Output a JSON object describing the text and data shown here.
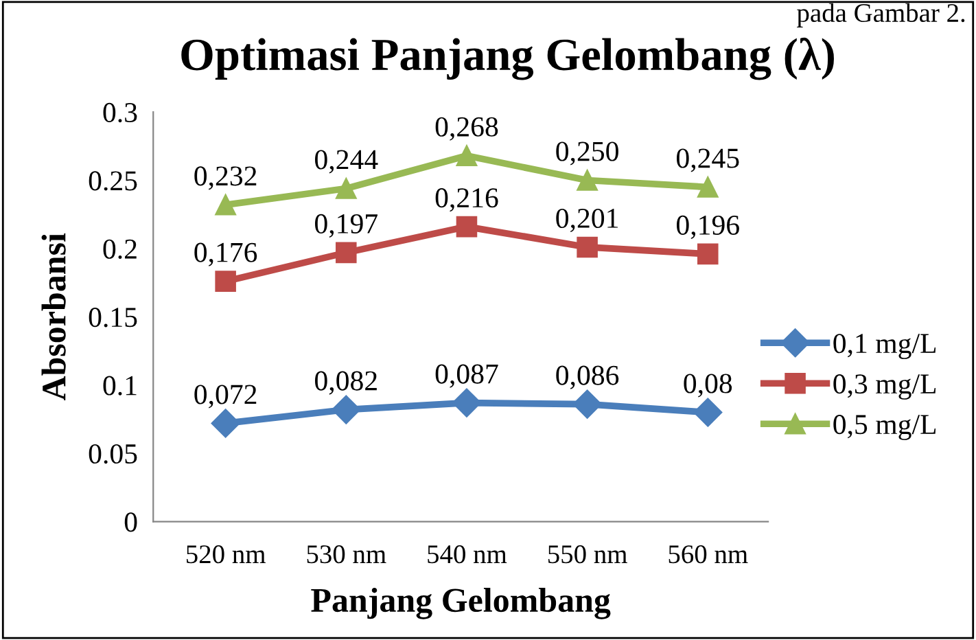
{
  "chart_data": {
    "type": "line",
    "title": "Optimasi Panjang Gelombang (λ)",
    "xlabel": "Panjang Gelombang",
    "ylabel": "Absorbansi",
    "annotations": [
      "pada Gambar 2."
    ],
    "categories": [
      "520 nm",
      "530 nm",
      "540 nm",
      "550 nm",
      "560 nm"
    ],
    "series": [
      {
        "name": "0,1 mg/L",
        "color": "#4a7ebb",
        "marker": "diamond",
        "values": [
          0.072,
          0.082,
          0.087,
          0.086,
          0.08
        ],
        "value_labels": [
          "0,072",
          "0,082",
          "0,087",
          "0,086",
          "0,08"
        ]
      },
      {
        "name": "0,3 mg/L",
        "color": "#be4b48",
        "marker": "square",
        "values": [
          0.176,
          0.197,
          0.216,
          0.201,
          0.196
        ],
        "value_labels": [
          "0,176",
          "0,197",
          "0,216",
          "0,201",
          "0,196"
        ]
      },
      {
        "name": "0,5 mg/L",
        "color": "#98b954",
        "marker": "triangle",
        "values": [
          0.232,
          0.244,
          0.268,
          0.25,
          0.245
        ],
        "value_labels": [
          "0,232",
          "0,244",
          "0,268",
          "0,250",
          "0,245"
        ]
      }
    ],
    "ylim": [
      0,
      0.3
    ],
    "yticks": [
      0,
      0.05,
      0.1,
      0.15,
      0.2,
      0.25,
      0.3
    ],
    "grid": false,
    "legend": "right"
  }
}
